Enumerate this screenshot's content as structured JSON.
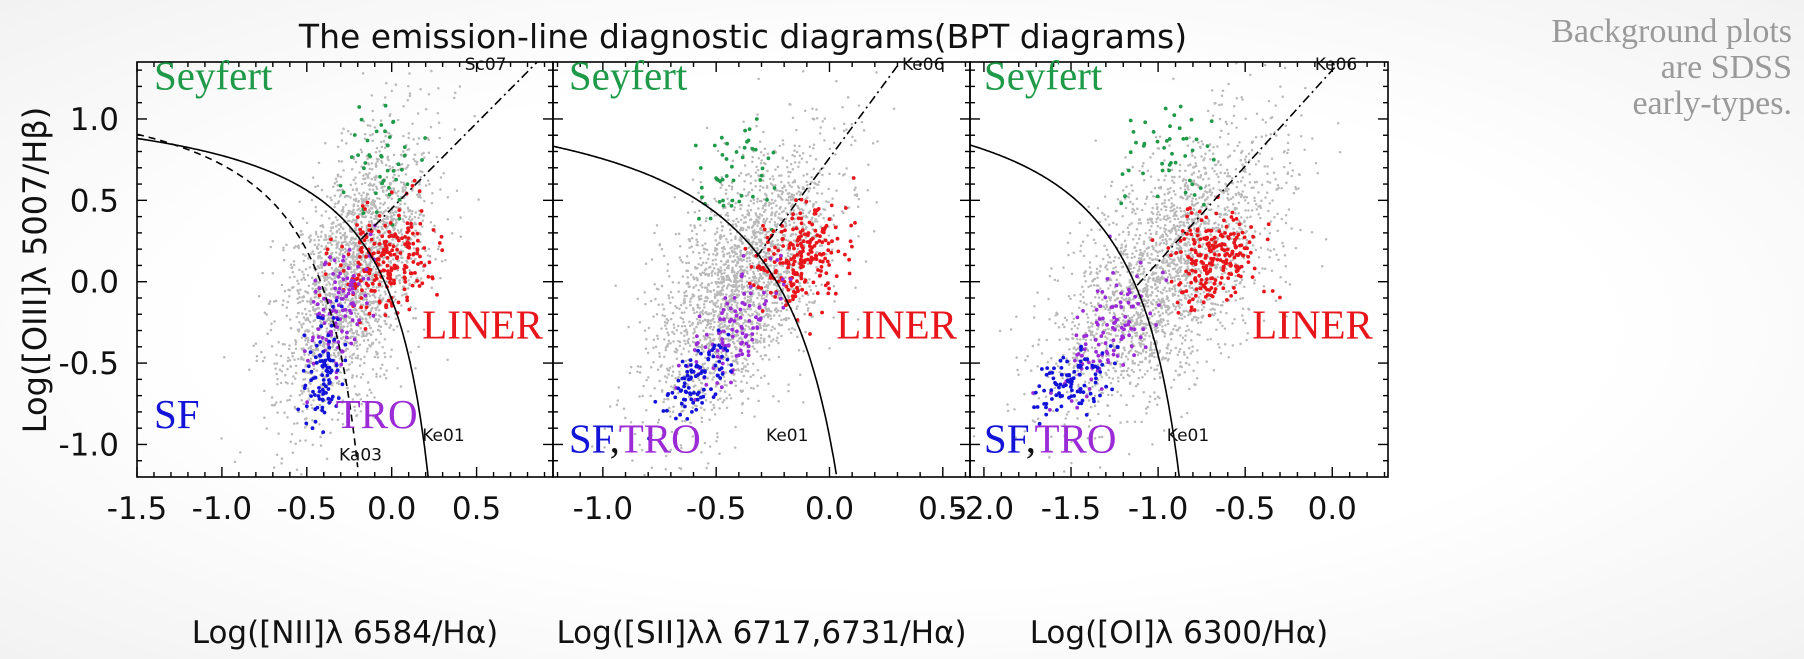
{
  "title": "The emission-line diagnostic diagrams(BPT diagrams)",
  "note": [
    "Background plots",
    "are SDSS",
    "early-types."
  ],
  "ylabel": "Log([OIII]λ 5007/Hβ)",
  "colors": {
    "seyfert": "#1e9a48",
    "liner": "#e8151b",
    "sf": "#1414d8",
    "tro": "#9b2bd6",
    "background": "#b9b9b9"
  },
  "chart_data": [
    {
      "type": "scatter",
      "xlabel": "Log([NII]λ 6584/Hα)",
      "ylabel": "Log([OIII]λ 5007/Hβ)",
      "xlim": [
        -1.5,
        0.95
      ],
      "ylim": [
        -1.2,
        1.35
      ],
      "xticks": [
        -1.5,
        -1.0,
        -0.5,
        0.0,
        0.5
      ],
      "xtick_labels": [
        "-1.5",
        "-1.0",
        "-0.5",
        "0.0",
        "0.5"
      ],
      "yticks": [
        1.0,
        0.5,
        0.0,
        -0.5,
        -1.0
      ],
      "ytick_labels": [
        "1.0",
        "0.5",
        "0.0",
        "-0.5",
        "-1.0"
      ],
      "regions": [
        {
          "label": "Seyfert",
          "color": "seyfert",
          "x": -1.4,
          "y": 1.18
        },
        {
          "label": "LINER",
          "color": "liner",
          "x": 0.18,
          "y": -0.35
        },
        {
          "label": "SF",
          "color": "sf",
          "x": -1.4,
          "y": -0.9
        },
        {
          "label": "TRO",
          "color": "tro",
          "x": -0.33,
          "y": -0.9
        }
      ],
      "curve_labels": [
        {
          "label": "Sc07",
          "x": 0.43,
          "y": 1.3
        },
        {
          "label": "Ka03",
          "x": -0.31,
          "y": -1.1
        },
        {
          "label": "Ke01",
          "x": 0.18,
          "y": -0.98
        }
      ],
      "curves": [
        {
          "name": "Ke01",
          "style": "solid",
          "formula": "0.61/(x-0.47)+1.19",
          "x_range": [
            -1.5,
            0.22
          ]
        },
        {
          "name": "Ka03",
          "style": "dashed",
          "formula": "0.61/(x-0.05)+1.3",
          "x_range": [
            -1.5,
            -0.2
          ]
        },
        {
          "name": "Sc07",
          "style": "dashdot",
          "formula": "1.05*x+0.45",
          "x_range": [
            -0.18,
            0.95
          ]
        }
      ],
      "series": [
        {
          "color": "background",
          "role": "SDSS early-types",
          "cluster": {
            "cx": -0.22,
            "cy": 0.05,
            "sx": 0.22,
            "sy": 0.42,
            "rho": 0.55,
            "n": 2200
          }
        },
        {
          "color": "seyfert",
          "cluster": {
            "cx": -0.05,
            "cy": 0.72,
            "sx": 0.12,
            "sy": 0.18,
            "rho": 0.2,
            "n": 45
          }
        },
        {
          "color": "liner",
          "cluster": {
            "cx": -0.03,
            "cy": 0.15,
            "sx": 0.14,
            "sy": 0.16,
            "rho": 0.25,
            "n": 230
          }
        },
        {
          "color": "tro",
          "cluster": {
            "cx": -0.3,
            "cy": -0.15,
            "sx": 0.09,
            "sy": 0.22,
            "rho": 0.6,
            "n": 110
          }
        },
        {
          "color": "sf",
          "cluster": {
            "cx": -0.4,
            "cy": -0.55,
            "sx": 0.06,
            "sy": 0.16,
            "rho": 0.4,
            "n": 95
          }
        }
      ]
    },
    {
      "type": "scatter",
      "xlabel": "Log([SII]λλ 6717,6731/Hα)",
      "xlim": [
        -1.22,
        0.62
      ],
      "ylim": [
        -1.2,
        1.35
      ],
      "xticks": [
        -1.0,
        -0.5,
        0.0,
        0.5
      ],
      "xtick_labels": [
        "-1.0",
        "-0.5",
        "0.0",
        "0.5"
      ],
      "yticks": [
        1.0,
        0.5,
        0.0,
        -0.5,
        -1.0
      ],
      "regions": [
        {
          "label": "Seyfert",
          "color": "seyfert",
          "x": -1.15,
          "y": 1.18
        },
        {
          "label": "LINER",
          "color": "liner",
          "x": 0.03,
          "y": -0.35
        },
        {
          "label": "SF",
          "color": "sf",
          "x": -1.15,
          "y": -1.05
        },
        {
          "label": ",",
          "color": "plain",
          "x": -0.97,
          "y": -1.05
        },
        {
          "label": "TRO",
          "color": "tro",
          "x": -0.93,
          "y": -1.05
        }
      ],
      "curve_labels": [
        {
          "label": "Ke06",
          "x": 0.32,
          "y": 1.3
        },
        {
          "label": "Ke01",
          "x": -0.28,
          "y": -0.98
        }
      ],
      "curves": [
        {
          "name": "Ke01",
          "style": "solid",
          "formula": "0.72/(x-0.32)+1.30",
          "x_range": [
            -1.22,
            0.03
          ]
        },
        {
          "name": "Ke06",
          "style": "dashdot",
          "formula": "1.89*x+0.76",
          "x_range": [
            -0.32,
            0.62
          ]
        }
      ],
      "series": [
        {
          "color": "background",
          "role": "SDSS early-types",
          "cluster": {
            "cx": -0.38,
            "cy": 0.0,
            "sx": 0.2,
            "sy": 0.42,
            "rho": 0.6,
            "n": 2200
          }
        },
        {
          "color": "seyfert",
          "cluster": {
            "cx": -0.4,
            "cy": 0.7,
            "sx": 0.08,
            "sy": 0.18,
            "rho": 0.3,
            "n": 45
          }
        },
        {
          "color": "liner",
          "cluster": {
            "cx": -0.12,
            "cy": 0.15,
            "sx": 0.1,
            "sy": 0.16,
            "rho": 0.2,
            "n": 230
          }
        },
        {
          "color": "tro",
          "cluster": {
            "cx": -0.42,
            "cy": -0.3,
            "sx": 0.12,
            "sy": 0.2,
            "rho": 0.7,
            "n": 110
          }
        },
        {
          "color": "sf",
          "cluster": {
            "cx": -0.58,
            "cy": -0.62,
            "sx": 0.07,
            "sy": 0.12,
            "rho": 0.5,
            "n": 95
          }
        }
      ]
    },
    {
      "type": "scatter",
      "xlabel": "Log([OI]λ 6300/Hα)",
      "xlim": [
        -2.08,
        0.32
      ],
      "ylim": [
        -1.2,
        1.35
      ],
      "xticks": [
        -2.0,
        -1.5,
        -1.0,
        -0.5,
        0.0
      ],
      "xtick_labels": [
        "-2.0",
        "-1.5",
        "-1.0",
        "-0.5",
        "0.0"
      ],
      "yticks": [
        1.0,
        0.5,
        0.0,
        -0.5,
        -1.0
      ],
      "regions": [
        {
          "label": "Seyfert",
          "color": "seyfert",
          "x": -2.0,
          "y": 1.18
        },
        {
          "label": "LINER",
          "color": "liner",
          "x": -0.46,
          "y": -0.35
        },
        {
          "label": "SF",
          "color": "sf",
          "x": -2.0,
          "y": -1.05
        },
        {
          "label": ",",
          "color": "plain",
          "x": -1.76,
          "y": -1.05
        },
        {
          "label": "TRO",
          "color": "tro",
          "x": -1.71,
          "y": -1.05
        }
      ],
      "curve_labels": [
        {
          "label": "Ke06",
          "x": -0.1,
          "y": 1.3
        },
        {
          "label": "Ke01",
          "x": -0.95,
          "y": -0.98
        }
      ],
      "curves": [
        {
          "name": "Ke01",
          "style": "solid",
          "formula": "0.73/(x+0.59)+1.33",
          "x_range": [
            -2.08,
            -0.86
          ]
        },
        {
          "name": "Ke06",
          "style": "dashdot",
          "formula": "1.18*x+1.30",
          "x_range": [
            -1.12,
            0.32
          ]
        }
      ],
      "series": [
        {
          "color": "background",
          "role": "SDSS early-types",
          "cluster": {
            "cx": -0.95,
            "cy": 0.05,
            "sx": 0.32,
            "sy": 0.42,
            "rho": 0.6,
            "n": 2200
          }
        },
        {
          "color": "seyfert",
          "cluster": {
            "cx": -0.95,
            "cy": 0.75,
            "sx": 0.14,
            "sy": 0.18,
            "rho": 0.1,
            "n": 45
          }
        },
        {
          "color": "liner",
          "cluster": {
            "cx": -0.68,
            "cy": 0.15,
            "sx": 0.12,
            "sy": 0.14,
            "rho": 0.1,
            "n": 230
          }
        },
        {
          "color": "tro",
          "cluster": {
            "cx": -1.28,
            "cy": -0.3,
            "sx": 0.14,
            "sy": 0.2,
            "rho": 0.6,
            "n": 110
          }
        },
        {
          "color": "sf",
          "cluster": {
            "cx": -1.5,
            "cy": -0.62,
            "sx": 0.12,
            "sy": 0.12,
            "rho": 0.5,
            "n": 95
          }
        }
      ]
    }
  ]
}
